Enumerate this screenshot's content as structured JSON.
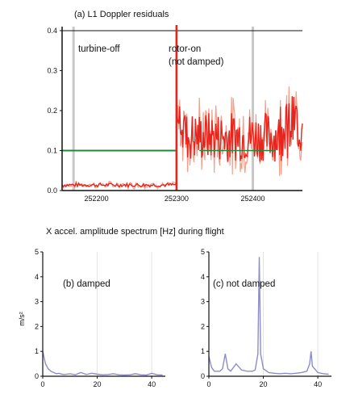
{
  "colors": {
    "residual": "#e8241c",
    "residual_light": "#f2a08a",
    "threshold": "#1f8a3a",
    "spectrum": "#8e8cc8",
    "grid": "#c8c8c8",
    "axis": "#111111"
  },
  "section_title": "X accel. amplitude spectrum [Hz] during flight",
  "chart_data": [
    {
      "type": "line",
      "title": "(a) L1 Doppler residuals",
      "annotations": [
        "turbine-off",
        "rotor-on",
        "(not damped)"
      ],
      "xticks": [
        "252200",
        "252300",
        "252400"
      ],
      "ylim": [
        0,
        0.41
      ],
      "yticks": [
        0.0,
        0.1,
        0.2,
        0.3,
        0.4
      ],
      "ytick_labels": [
        "0.0",
        "0.1",
        "0.2",
        "0.3",
        "0.4"
      ],
      "xlim": [
        252150,
        252465
      ],
      "threshold": 0.1,
      "event_x": 252300,
      "grid_x": [
        252165,
        252300,
        252400
      ],
      "segments": [
        {
          "x_start": 252150,
          "x_end": 252300,
          "baseline": 0.012,
          "spread": 0.01
        },
        {
          "x_start": 252300,
          "x_end": 252465,
          "baseline": 0.11,
          "spread": 0.09
        }
      ]
    },
    {
      "type": "line",
      "title": "(b) damped",
      "ylabel": "m/s²",
      "xlim": [
        0,
        45
      ],
      "ylim": [
        0,
        5
      ],
      "xticks": [
        0,
        20,
        40
      ],
      "yticks": [
        0,
        1,
        2,
        3,
        4,
        5
      ],
      "x": [
        0,
        1,
        2,
        3,
        4,
        5,
        6,
        7,
        8,
        10,
        12,
        14,
        16,
        18,
        20,
        22,
        24,
        26,
        28,
        30,
        32,
        34,
        36,
        38,
        40,
        42,
        44
      ],
      "values": [
        1.0,
        0.5,
        0.3,
        0.2,
        0.15,
        0.1,
        0.12,
        0.08,
        0.07,
        0.1,
        0.06,
        0.15,
        0.07,
        0.12,
        0.08,
        0.06,
        0.07,
        0.1,
        0.06,
        0.05,
        0.06,
        0.1,
        0.06,
        0.05,
        0.12,
        0.06,
        0.05
      ]
    },
    {
      "type": "line",
      "title": "(c) not damped",
      "xlim": [
        0,
        45
      ],
      "ylim": [
        0,
        5
      ],
      "xticks": [
        0,
        20,
        40
      ],
      "yticks": [
        0,
        1,
        2,
        3,
        4,
        5
      ],
      "x": [
        0,
        1,
        2,
        3,
        4,
        5,
        6,
        7,
        8,
        10,
        12,
        14,
        16,
        17,
        18,
        18.5,
        19,
        20,
        22,
        24,
        26,
        28,
        30,
        32,
        34,
        36,
        37,
        37.5,
        38,
        40,
        42,
        44
      ],
      "values": [
        0.8,
        0.35,
        0.2,
        0.2,
        0.2,
        0.3,
        0.9,
        0.3,
        0.2,
        0.5,
        0.25,
        0.2,
        0.2,
        0.25,
        0.9,
        4.8,
        0.9,
        0.3,
        0.15,
        0.12,
        0.1,
        0.12,
        0.1,
        0.12,
        0.15,
        0.2,
        0.5,
        1.0,
        0.4,
        0.15,
        0.1,
        0.08
      ]
    }
  ]
}
